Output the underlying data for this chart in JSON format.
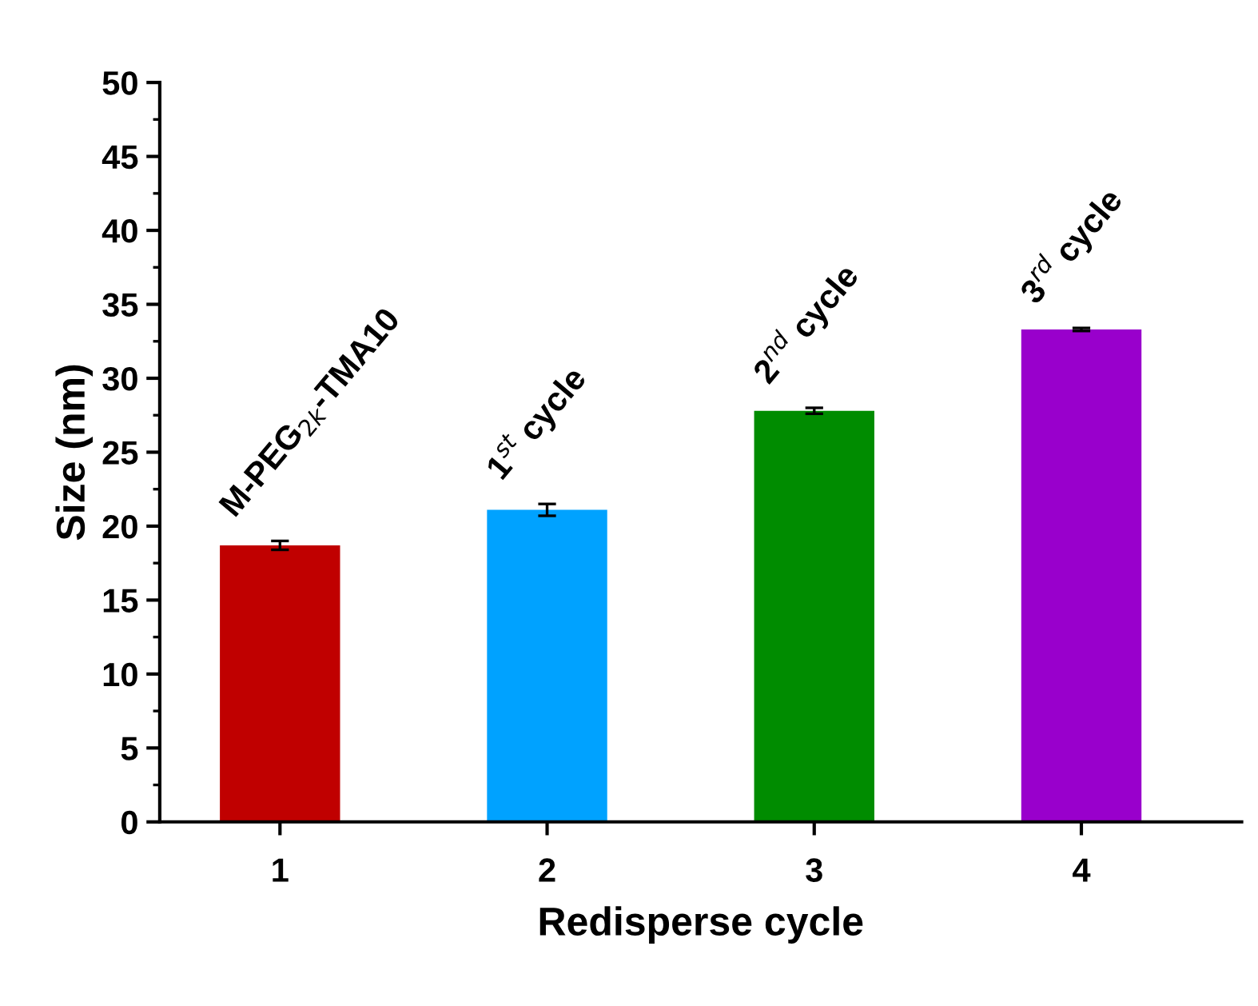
{
  "chart_data": {
    "type": "bar",
    "xlabel": "Redisperse cycle",
    "ylabel": "Size (nm)",
    "categories": [
      "1",
      "2",
      "3",
      "4"
    ],
    "values": [
      18.7,
      21.1,
      27.8,
      33.3
    ],
    "errors": [
      0.3,
      0.4,
      0.2,
      0.1
    ],
    "colors": [
      "#c00000",
      "#00a2ff",
      "#008c00",
      "#9900cc"
    ],
    "ylim": [
      0,
      50
    ],
    "yticks": [
      0,
      5,
      10,
      15,
      20,
      25,
      30,
      35,
      40,
      45,
      50
    ],
    "grid": false,
    "annotations": [
      {
        "text": "M-PEG$_{2k}$-TMA10",
        "x": "1",
        "y": 18.7
      },
      {
        "text": "1$^{st}$ cycle",
        "x": "2",
        "y": 21.1
      },
      {
        "text": "2$^{nd}$ cycle",
        "x": "3",
        "y": 27.8
      },
      {
        "text": "3$^{rd}$ cycle",
        "x": "4",
        "y": 33.3
      }
    ]
  }
}
